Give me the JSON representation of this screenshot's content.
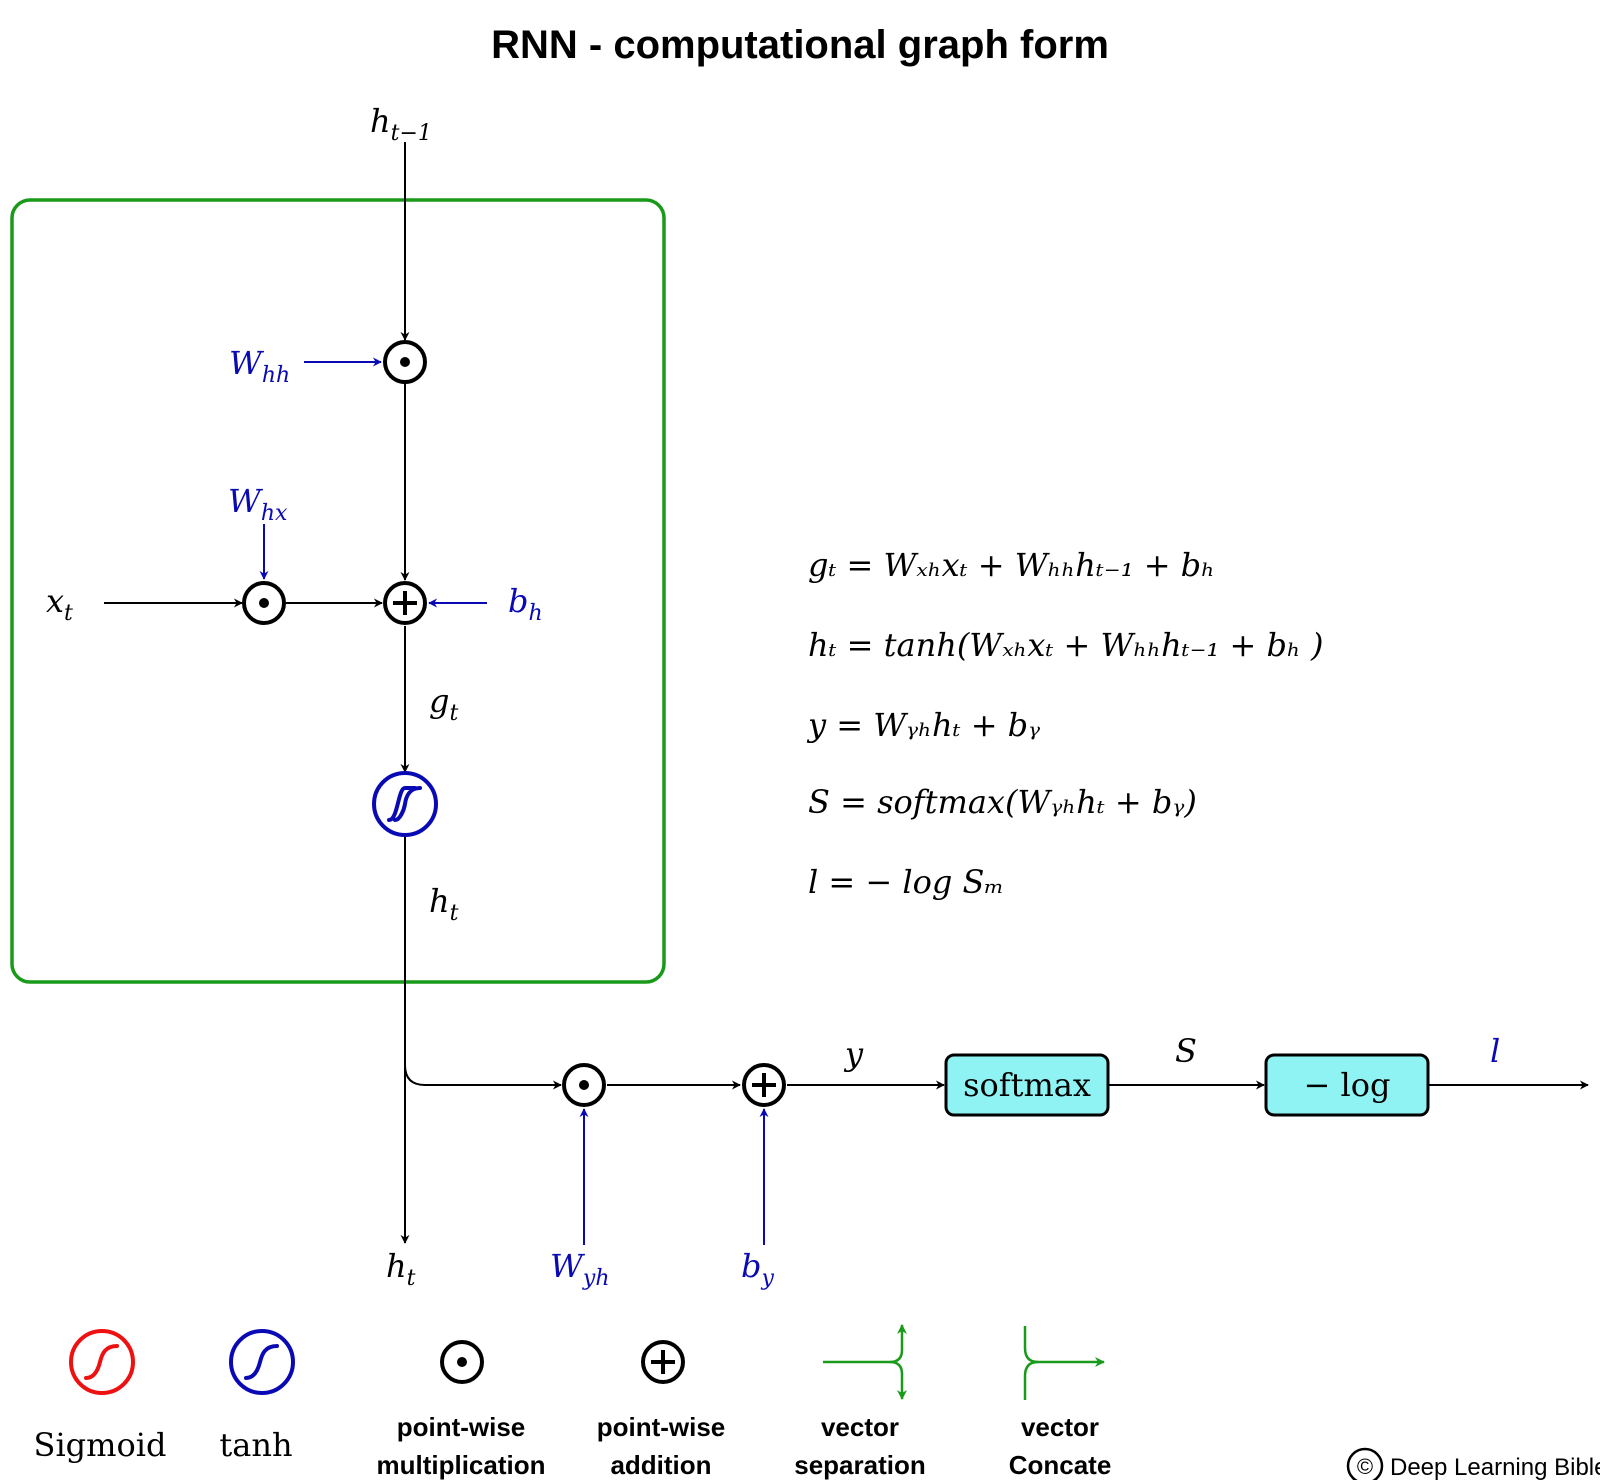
{
  "title": "RNN - computational graph form",
  "colors": {
    "cell_border": "#1a9a1a",
    "weight_blue": "#0a0ab4",
    "sigmoid_red": "#ee1111",
    "box_fill": "#8ff3f3",
    "legend_green": "#1a9a1a"
  },
  "graph": {
    "h_prev": {
      "base": "h",
      "sub": "t−1"
    },
    "x_t": {
      "base": "x",
      "sub": "t"
    },
    "W_hh": {
      "base": "W",
      "sub": "hh"
    },
    "W_hx": {
      "base": "W",
      "sub": "hx"
    },
    "b_h": {
      "base": "b",
      "sub": "h"
    },
    "g_t": {
      "base": "g",
      "sub": "t"
    },
    "h_t_inner": {
      "base": "h",
      "sub": "t"
    },
    "h_t_out": {
      "base": "h",
      "sub": "t"
    },
    "W_yh": {
      "base": "W",
      "sub": "yh"
    },
    "b_y": {
      "base": "b",
      "sub": "y"
    },
    "y": "y",
    "S": "S",
    "l": "l",
    "softmax_box": "softmax",
    "neglog_box": "− log"
  },
  "equations": [
    "gₜ =  Wₓₕxₜ + Wₕₕhₜ₋₁ + bₕ",
    "hₜ =  tanh(Wₓₕxₜ + Wₕₕhₜ₋₁ + bₕ )",
    "y = Wᵧₕhₜ + bᵧ",
    "S =  softmax(Wᵧₕhₜ + bᵧ)",
    "l =   − log Sₘ"
  ],
  "legend": {
    "sigmoid": {
      "label": "Sigmoid",
      "icon": "sigmoid-icon"
    },
    "tanh": {
      "label": "tanh",
      "icon": "tanh-icon"
    },
    "mult": {
      "line1": "point-wise",
      "line2": "multiplication",
      "icon": "pointwise-multiplication-icon"
    },
    "add": {
      "line1": "point-wise",
      "line2": "addition",
      "icon": "pointwise-addition-icon"
    },
    "separation": {
      "line1": "vector",
      "line2": "separation",
      "icon": "vector-separation-icon"
    },
    "concat": {
      "line1": "vector",
      "line2": "Concate",
      "icon": "vector-concate-icon"
    }
  },
  "credit": {
    "symbol": "©",
    "text": "Deep Learning Bible"
  }
}
